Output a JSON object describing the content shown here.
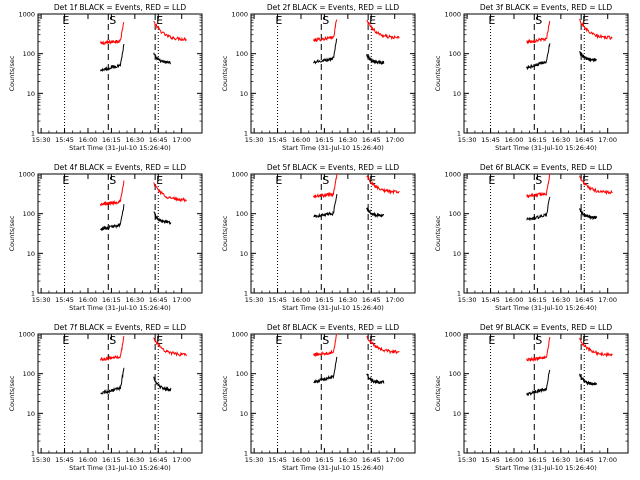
{
  "chart_data": [
    {
      "type": "line",
      "title": "Det 1f BLACK = Events, RED = LLD",
      "xlabel": "Start Time (31-Jul-10 15:26:40)",
      "ylabel": "Counts/sec",
      "markers": [
        "E",
        "S",
        "E"
      ],
      "xtick_labels": [
        "15:30",
        "15:45",
        "16:00",
        "16:15",
        "16:30",
        "16:45",
        "17:00"
      ],
      "ytick_labels": [
        "1",
        "10",
        "100",
        "1000"
      ],
      "series": [
        {
          "color": "#ff0000",
          "segments": [
            {
              "x": [
                -5,
                10
              ],
              "y": [
                180,
                220
              ]
            },
            {
              "x": [
                29,
                50
              ],
              "y": [
                650,
                230
              ]
            }
          ]
        },
        {
          "color": "#000000",
          "segments": [
            {
              "x": [
                -5,
                10
              ],
              "y": [
                38,
                55
              ]
            },
            {
              "x": [
                29,
                40
              ],
              "y": [
                100,
                60
              ]
            }
          ]
        }
      ]
    },
    {
      "type": "line",
      "title": "Det 2f BLACK = Events, RED = LLD",
      "xlabel": "Start Time (31-Jul-10 15:26:40)",
      "ylabel": "Counts/sec",
      "markers": [
        "E",
        "S",
        "E"
      ],
      "xtick_labels": [
        "15:30",
        "15:45",
        "16:00",
        "16:15",
        "16:30",
        "16:45",
        "17:00"
      ],
      "ytick_labels": [
        "1",
        "10",
        "100",
        "1000"
      ],
      "series": [
        {
          "color": "#ff0000",
          "segments": [
            {
              "x": [
                -5,
                10
              ],
              "y": [
                220,
                260
              ]
            },
            {
              "x": [
                29,
                50
              ],
              "y": [
                700,
                250
              ]
            }
          ]
        },
        {
          "color": "#000000",
          "segments": [
            {
              "x": [
                -5,
                10
              ],
              "y": [
                60,
                80
              ]
            },
            {
              "x": [
                29,
                40
              ],
              "y": [
                95,
                60
              ]
            }
          ]
        }
      ]
    },
    {
      "type": "line",
      "title": "Det 3f BLACK = Events, RED = LLD",
      "xlabel": "Start Time (31-Jul-10 15:26:40)",
      "ylabel": "Counts/sec",
      "markers": [
        "E",
        "S",
        "E"
      ],
      "xtick_labels": [
        "15:30",
        "15:45",
        "16:00",
        "16:15",
        "16:30",
        "16:45",
        "17:00"
      ],
      "ytick_labels": [
        "1",
        "10",
        "100",
        "1000"
      ],
      "series": [
        {
          "color": "#ff0000",
          "segments": [
            {
              "x": [
                -5,
                10
              ],
              "y": [
                200,
                240
              ]
            },
            {
              "x": [
                29,
                50
              ],
              "y": [
                700,
                250
              ]
            }
          ]
        },
        {
          "color": "#000000",
          "segments": [
            {
              "x": [
                -5,
                10
              ],
              "y": [
                45,
                65
              ]
            },
            {
              "x": [
                29,
                40
              ],
              "y": [
                110,
                70
              ]
            }
          ]
        }
      ]
    },
    {
      "type": "line",
      "title": "Det 4f BLACK = Events, RED = LLD",
      "xlabel": "Start Time (31-Jul-10 15:26:40)",
      "ylabel": "Counts/sec",
      "markers": [
        "E",
        "S",
        "E"
      ],
      "xtick_labels": [
        "15:30",
        "15:45",
        "16:00",
        "16:15",
        "16:30",
        "16:45",
        "17:00"
      ],
      "ytick_labels": [
        "1",
        "10",
        "100",
        "1000"
      ],
      "series": [
        {
          "color": "#ff0000",
          "segments": [
            {
              "x": [
                -5,
                10
              ],
              "y": [
                170,
                210
              ]
            },
            {
              "x": [
                29,
                50
              ],
              "y": [
                600,
                220
              ]
            }
          ]
        },
        {
          "color": "#000000",
          "segments": [
            {
              "x": [
                -5,
                10
              ],
              "y": [
                40,
                55
              ]
            },
            {
              "x": [
                29,
                40
              ],
              "y": [
                110,
                60
              ]
            }
          ]
        }
      ]
    },
    {
      "type": "line",
      "title": "Det 5f BLACK = Events, RED = LLD",
      "xlabel": "Start Time (31-Jul-10 15:26:40)",
      "ylabel": "Counts/sec",
      "markers": [
        "E",
        "S",
        "E"
      ],
      "xtick_labels": [
        "15:30",
        "15:45",
        "16:00",
        "16:15",
        "16:30",
        "16:45",
        "17:00"
      ],
      "ytick_labels": [
        "1",
        "10",
        "100",
        "1000"
      ],
      "series": [
        {
          "color": "#ff0000",
          "segments": [
            {
              "x": [
                -5,
                10
              ],
              "y": [
                270,
                320
              ]
            },
            {
              "x": [
                29,
                50
              ],
              "y": [
                900,
                350
              ]
            }
          ]
        },
        {
          "color": "#000000",
          "segments": [
            {
              "x": [
                -5,
                10
              ],
              "y": [
                85,
                105
              ]
            },
            {
              "x": [
                29,
                40
              ],
              "y": [
                140,
                90
              ]
            }
          ]
        }
      ]
    },
    {
      "type": "line",
      "title": "Det 6f BLACK = Events, RED = LLD",
      "xlabel": "Start Time (31-Jul-10 15:26:40)",
      "ylabel": "Counts/sec",
      "markers": [
        "E",
        "S",
        "E"
      ],
      "xtick_labels": [
        "15:30",
        "15:45",
        "16:00",
        "16:15",
        "16:30",
        "16:45",
        "17:00"
      ],
      "ytick_labels": [
        "1",
        "10",
        "100",
        "1000"
      ],
      "series": [
        {
          "color": "#ff0000",
          "segments": [
            {
              "x": [
                -5,
                10
              ],
              "y": [
                280,
                330
              ]
            },
            {
              "x": [
                29,
                50
              ],
              "y": [
                850,
                340
              ]
            }
          ]
        },
        {
          "color": "#000000",
          "segments": [
            {
              "x": [
                -5,
                10
              ],
              "y": [
                70,
                95
              ]
            },
            {
              "x": [
                29,
                40
              ],
              "y": [
                130,
                80
              ]
            }
          ]
        }
      ]
    },
    {
      "type": "line",
      "title": "Det 7f BLACK = Events, RED = LLD",
      "xlabel": "Start Time (31-Jul-10 15:26:40)",
      "ylabel": "Counts/sec",
      "markers": [
        "E",
        "S",
        "E"
      ],
      "xtick_labels": [
        "15:30",
        "15:45",
        "16:00",
        "16:15",
        "16:30",
        "16:45",
        "17:00"
      ],
      "ytick_labels": [
        "1",
        "10",
        "100",
        "1000"
      ],
      "series": [
        {
          "color": "#ff0000",
          "segments": [
            {
              "x": [
                -5,
                10
              ],
              "y": [
                230,
                280
              ]
            },
            {
              "x": [
                29,
                50
              ],
              "y": [
                800,
                300
              ]
            }
          ]
        },
        {
          "color": "#000000",
          "segments": [
            {
              "x": [
                -5,
                10
              ],
              "y": [
                32,
                45
              ]
            },
            {
              "x": [
                29,
                40
              ],
              "y": [
                85,
                40
              ]
            }
          ]
        }
      ]
    },
    {
      "type": "line",
      "title": "Det 8f BLACK = Events, RED = LLD",
      "xlabel": "Start Time (31-Jul-10 15:26:40)",
      "ylabel": "Counts/sec",
      "markers": [
        "E",
        "S",
        "E"
      ],
      "xtick_labels": [
        "15:30",
        "15:45",
        "16:00",
        "16:15",
        "16:30",
        "16:45",
        "17:00"
      ],
      "ytick_labels": [
        "1",
        "10",
        "100",
        "1000"
      ],
      "series": [
        {
          "color": "#ff0000",
          "segments": [
            {
              "x": [
                -5,
                10
              ],
              "y": [
                300,
                360
              ]
            },
            {
              "x": [
                29,
                50
              ],
              "y": [
                900,
                350
              ]
            }
          ]
        },
        {
          "color": "#000000",
          "segments": [
            {
              "x": [
                -5,
                10
              ],
              "y": [
                60,
                90
              ]
            },
            {
              "x": [
                29,
                40
              ],
              "y": [
                100,
                60
              ]
            }
          ]
        }
      ]
    },
    {
      "type": "line",
      "title": "Det 9f BLACK = Events, RED = LLD",
      "xlabel": "Start Time (31-Jul-10 15:26:40)",
      "ylabel": "Counts/sec",
      "markers": [
        "E",
        "S",
        "E"
      ],
      "xtick_labels": [
        "15:30",
        "15:45",
        "16:00",
        "16:15",
        "16:30",
        "16:45",
        "17:00"
      ],
      "ytick_labels": [
        "1",
        "10",
        "100",
        "1000"
      ],
      "series": [
        {
          "color": "#ff0000",
          "segments": [
            {
              "x": [
                -5,
                10
              ],
              "y": [
                220,
                270
              ]
            },
            {
              "x": [
                29,
                50
              ],
              "y": [
                750,
                300
              ]
            }
          ]
        },
        {
          "color": "#000000",
          "segments": [
            {
              "x": [
                -5,
                10
              ],
              "y": [
                30,
                45
              ]
            },
            {
              "x": [
                29,
                40
              ],
              "y": [
                95,
                55
              ]
            }
          ]
        }
      ]
    }
  ]
}
